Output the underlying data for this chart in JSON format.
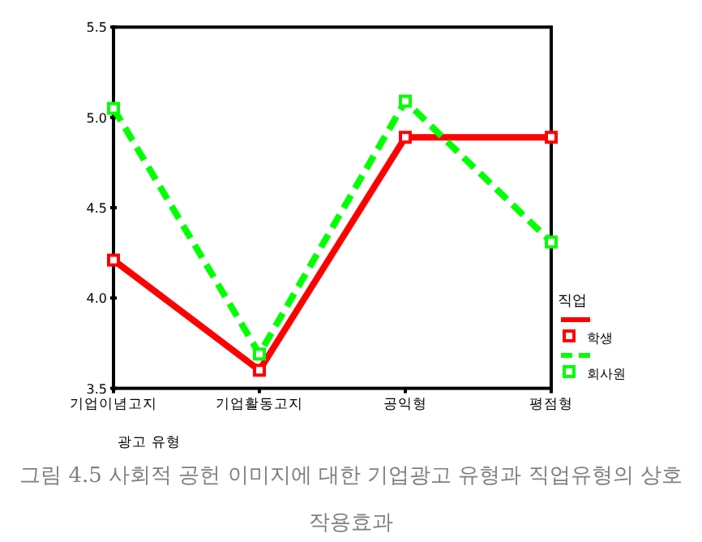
{
  "chart_data": {
    "type": "line",
    "xlabel": "광고 유형",
    "legend_title": "직업",
    "categories": [
      "기업이념고지",
      "기업활동고지",
      "공익형",
      "평점형"
    ],
    "series": [
      {
        "name": "학생",
        "color": "#ff0000",
        "values": [
          4.21,
          3.6,
          4.89,
          4.89
        ],
        "line_style": "solid"
      },
      {
        "name": "회사원",
        "color": "#00ff00",
        "values": [
          5.05,
          3.69,
          5.09,
          4.31
        ],
        "line_style": "dashed"
      }
    ],
    "ylim": [
      3.5,
      5.5
    ],
    "yticks": [
      3.5,
      {
        "value": 4,
        "label": "4.0"
      },
      4.5,
      {
        "value": 5,
        "label": "5.0"
      },
      5.5
    ],
    "marker": "square",
    "grid": false,
    "legend": "bottom right",
    "annotations": [
      "그림 4.5 사회적 공헌 이미지에 대한 기업광고 유형과 직업유형의 상호작용효과"
    ]
  }
}
